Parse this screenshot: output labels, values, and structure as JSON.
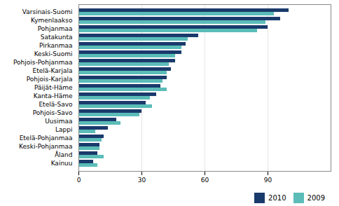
{
  "chart_data": {
    "type": "bar",
    "orientation": "horizontal",
    "categories": [
      "Varsinais-Suomi",
      "Kymenlaakso",
      "Pohjanmaa",
      "Satakunta",
      "Pirkanmaa",
      "Keski-Suomi",
      "Pohjois-Pohjanmaa",
      "Etelä-Karjala",
      "Pohjois-Karjala",
      "Päijät-Häme",
      "Kanta-Häme",
      "Etelä-Savo",
      "Pohjois-Savo",
      "Uusimaa",
      "Lappi",
      "Etelä-Pohjanmaa",
      "Keski-Pohjanmaa",
      "Åland",
      "Kainuu"
    ],
    "series": [
      {
        "name": "2010",
        "color": "#1a3a6b",
        "values": [
          100,
          96,
          90,
          57,
          51,
          49,
          46,
          44,
          42,
          39,
          37,
          32,
          30,
          18,
          14,
          12,
          10,
          9,
          7
        ]
      },
      {
        "name": "2009",
        "color": "#5bbcb8",
        "values": [
          93,
          89,
          85,
          52,
          49,
          46,
          43,
          42,
          40,
          42,
          34,
          35,
          29,
          20,
          8,
          11,
          10,
          12,
          9
        ]
      }
    ],
    "xlim": [
      0,
      120
    ],
    "xticks": [
      0,
      30,
      60,
      90
    ],
    "grid": true,
    "legend": "lower right"
  }
}
